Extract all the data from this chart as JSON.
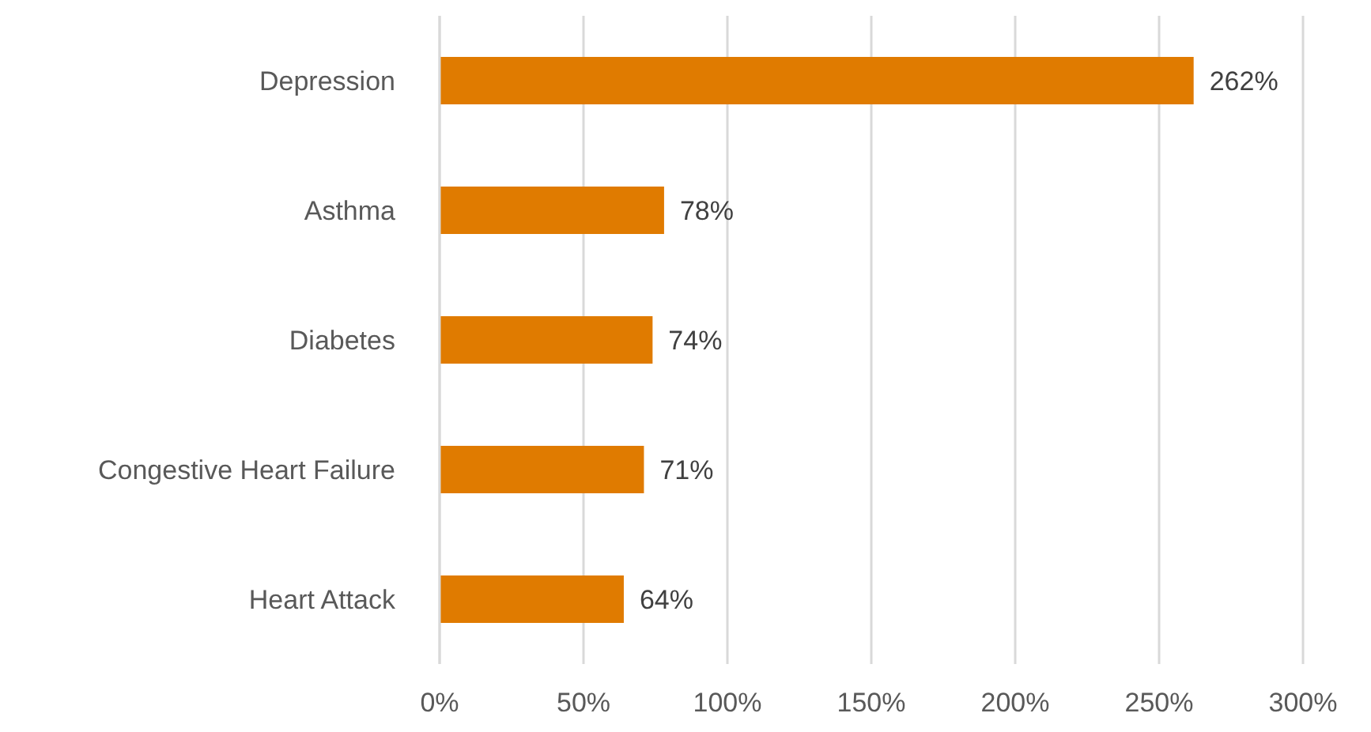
{
  "chart_data": {
    "type": "bar",
    "orientation": "horizontal",
    "categories": [
      "Depression",
      "Asthma",
      "Diabetes",
      "Congestive Heart Failure",
      "Heart Attack"
    ],
    "values": [
      262,
      78,
      74,
      71,
      64
    ],
    "value_labels": [
      "262%",
      "78%",
      "74%",
      "71%",
      "64%"
    ],
    "color": "#e07b00",
    "xlim": [
      0,
      300
    ],
    "xticks": [
      {
        "value": 0,
        "label": "0%"
      },
      {
        "value": 50,
        "label": "50%"
      },
      {
        "value": 100,
        "label": "100%"
      },
      {
        "value": 150,
        "label": "150%"
      },
      {
        "value": 200,
        "label": "200%"
      },
      {
        "value": 250,
        "label": "250%"
      },
      {
        "value": 300,
        "label": "300%"
      }
    ],
    "grid": "x",
    "legend": false
  }
}
